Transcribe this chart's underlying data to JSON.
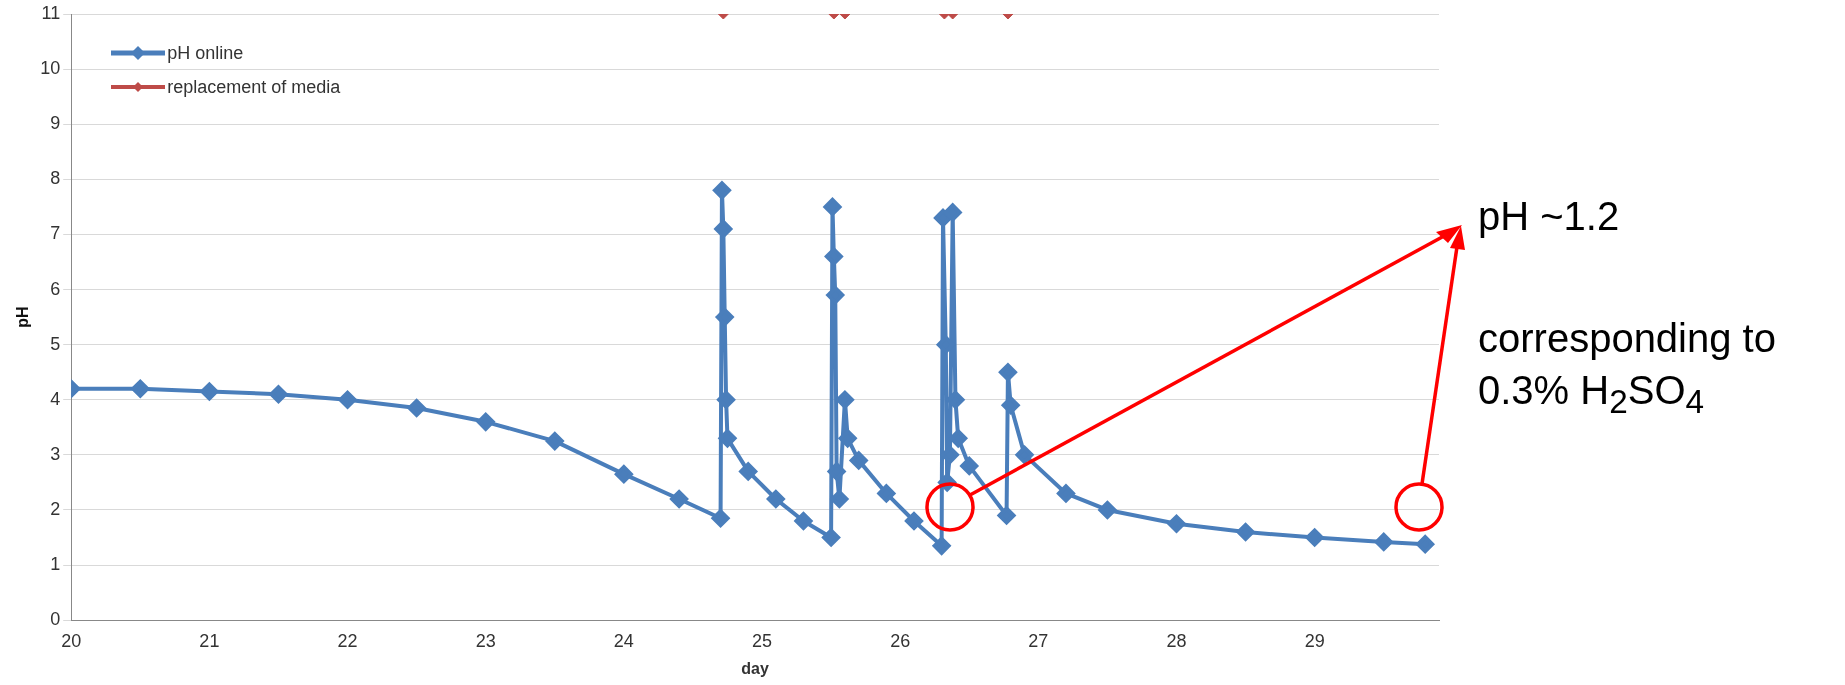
{
  "chart_data": {
    "type": "line",
    "xlabel": "day",
    "ylabel": "pH",
    "xlim": [
      20,
      29.9
    ],
    "xticks": [
      20,
      21,
      22,
      23,
      24,
      25,
      26,
      27,
      28,
      29
    ],
    "ylim": [
      0,
      11
    ],
    "yticks": [
      0,
      1,
      2,
      3,
      4,
      5,
      6,
      7,
      8,
      9,
      10,
      11
    ],
    "grid": "y",
    "legend": "top left",
    "marker": "diamond",
    "series": [
      {
        "name": "pH online",
        "color": "#4a7ebb",
        "x": [
          20.0,
          20.5,
          21.0,
          21.5,
          22.0,
          22.5,
          23.0,
          23.5,
          24.0,
          24.4,
          24.7,
          24.71,
          24.72,
          24.73,
          24.74,
          24.75,
          24.9,
          25.1,
          25.3,
          25.5,
          25.51,
          25.52,
          25.53,
          25.54,
          25.56,
          25.6,
          25.62,
          25.7,
          25.9,
          26.1,
          26.3,
          26.31,
          26.33,
          26.34,
          26.36,
          26.38,
          26.4,
          26.42,
          26.5,
          26.77,
          26.78,
          26.8,
          26.9,
          27.2,
          27.5,
          28.0,
          28.5,
          29.0,
          29.5,
          29.8
        ],
        "values": [
          4.2,
          4.2,
          4.15,
          4.1,
          4.0,
          3.85,
          3.6,
          3.25,
          2.65,
          2.2,
          1.85,
          7.8,
          7.1,
          5.5,
          4.0,
          3.3,
          2.7,
          2.2,
          1.8,
          1.5,
          7.5,
          6.6,
          5.9,
          2.7,
          2.2,
          4.0,
          3.3,
          2.9,
          2.3,
          1.8,
          1.35,
          7.3,
          5.0,
          2.5,
          3.0,
          7.4,
          4.0,
          3.3,
          2.8,
          1.9,
          4.5,
          3.9,
          3.0,
          2.3,
          2.0,
          1.75,
          1.6,
          1.5,
          1.42,
          1.38
        ]
      },
      {
        "name": "replacement of media",
        "color": "#be4b48",
        "type": "scatter",
        "x": [
          24.72,
          25.52,
          25.6,
          26.32,
          26.38,
          26.78
        ],
        "values": [
          11,
          11,
          11,
          11,
          11,
          11
        ]
      }
    ],
    "annotations": [
      "pH ~1.2",
      "corresponding to 0.3% H$_{2}$SO$_{4}$"
    ]
  }
}
